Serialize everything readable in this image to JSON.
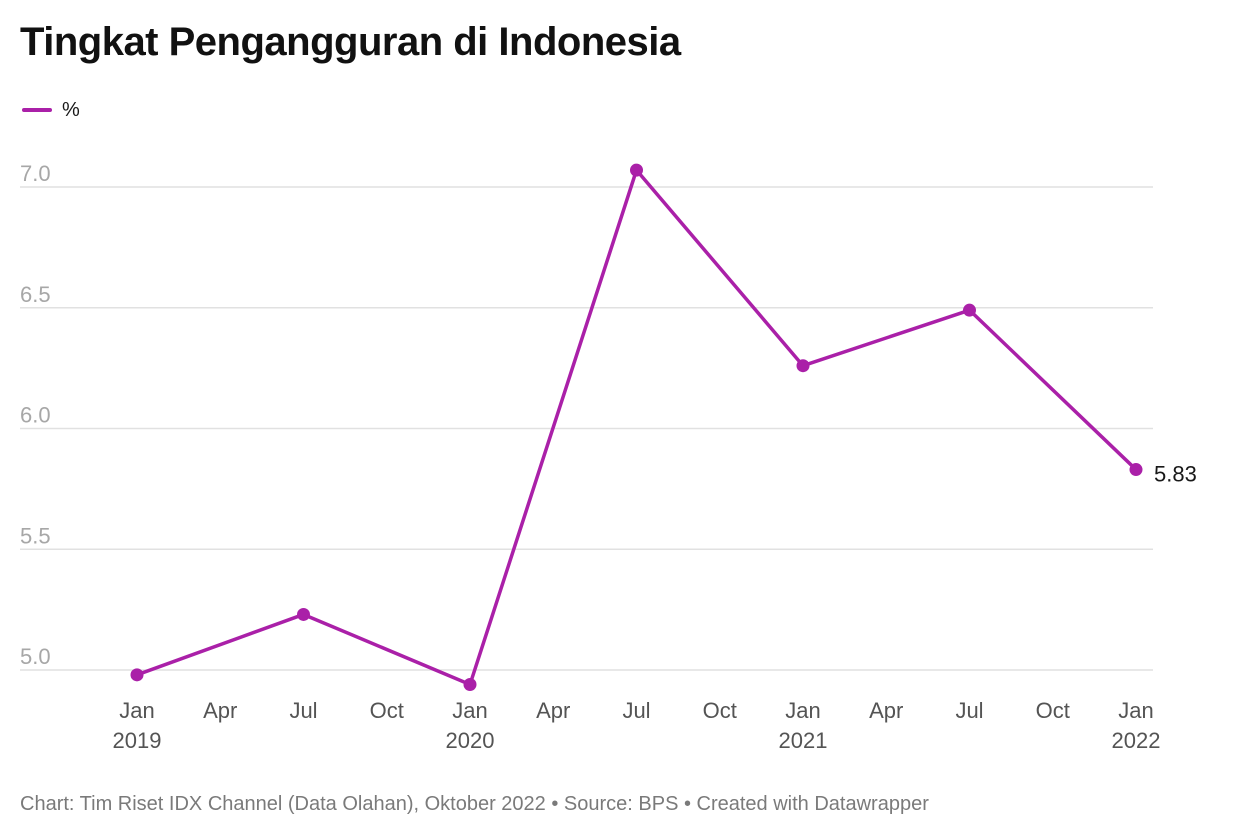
{
  "chart_data": {
    "type": "line",
    "title": "Tingkat Pengangguran di Indonesia",
    "xlabel": "",
    "ylabel": "",
    "ylim": [
      4.95,
      7.0
    ],
    "yticks": [
      "7.0",
      "6.5",
      "6.0",
      "5.5",
      "5.0"
    ],
    "yticks_values": [
      7.0,
      6.5,
      6.0,
      5.5,
      5.0
    ],
    "xticks": [
      {
        "date": "2019-01",
        "month": "Jan",
        "year": "2019"
      },
      {
        "date": "2019-04",
        "month": "Apr",
        "year": ""
      },
      {
        "date": "2019-07",
        "month": "Jul",
        "year": ""
      },
      {
        "date": "2019-10",
        "month": "Oct",
        "year": ""
      },
      {
        "date": "2020-01",
        "month": "Jan",
        "year": "2020"
      },
      {
        "date": "2020-04",
        "month": "Apr",
        "year": ""
      },
      {
        "date": "2020-07",
        "month": "Jul",
        "year": ""
      },
      {
        "date": "2020-10",
        "month": "Oct",
        "year": ""
      },
      {
        "date": "2021-01",
        "month": "Jan",
        "year": "2021"
      },
      {
        "date": "2021-04",
        "month": "Apr",
        "year": ""
      },
      {
        "date": "2021-07",
        "month": "Jul",
        "year": ""
      },
      {
        "date": "2021-10",
        "month": "Oct",
        "year": ""
      },
      {
        "date": "2022-01",
        "month": "Jan",
        "year": "2022"
      }
    ],
    "series": [
      {
        "name": "%",
        "color": "#aa20a8",
        "x": [
          "2019-01",
          "2019-07",
          "2020-01",
          "2020-07",
          "2021-01",
          "2021-07",
          "2022-01"
        ],
        "values": [
          4.98,
          5.23,
          4.94,
          7.07,
          6.26,
          6.49,
          5.83
        ]
      }
    ],
    "annotations": [
      {
        "label": "5.83",
        "point": 6
      }
    ],
    "grid": "horizontal",
    "legend": "top-left"
  },
  "footer": "Chart: Tim Riset IDX Channel (Data Olahan), Oktober 2022 • Source: BPS • Created with Datawrapper",
  "colors": {
    "line": "#aa20a8",
    "grid": "#e1e1e1",
    "tick_y": "#a7a7a7",
    "tick_x": "#545454",
    "footer": "#7a7a7a"
  }
}
